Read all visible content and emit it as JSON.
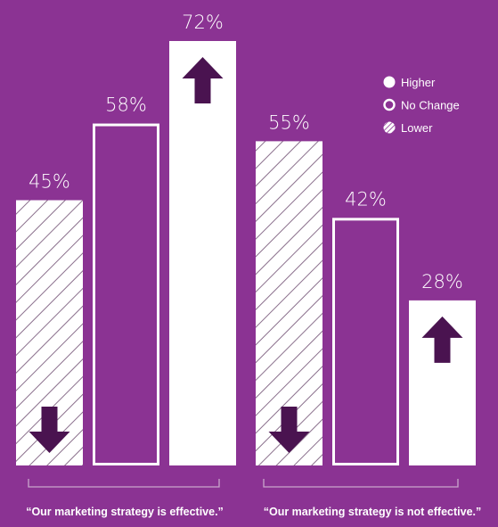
{
  "colors": {
    "background": "#8b3393",
    "white": "#ffffff",
    "arrow": "#4a1350",
    "hatch": "#8a6f8c"
  },
  "chart_data": {
    "type": "bar",
    "title": "",
    "xlabel": "",
    "ylabel": "",
    "ylim": [
      0,
      72
    ],
    "grid": false,
    "legend_position": "top-right",
    "legend": [
      {
        "key": "higher",
        "label": "Higher",
        "icon": "filled-circle-icon"
      },
      {
        "key": "no_change",
        "label": "No Change",
        "icon": "ring-circle-icon"
      },
      {
        "key": "lower",
        "label": "Lower",
        "icon": "hatched-circle-icon"
      }
    ],
    "groups": [
      {
        "label": "“Our marketing strategy is effective.”",
        "bars": [
          {
            "series": "lower",
            "value": 45,
            "display": "45%",
            "arrow": "down"
          },
          {
            "series": "no_change",
            "value": 58,
            "display": "58%",
            "arrow": "none"
          },
          {
            "series": "higher",
            "value": 72,
            "display": "72%",
            "arrow": "up"
          }
        ]
      },
      {
        "label": "“Our marketing strategy is not effective.”",
        "bars": [
          {
            "series": "lower",
            "value": 55,
            "display": "55%",
            "arrow": "down"
          },
          {
            "series": "no_change",
            "value": 42,
            "display": "42%",
            "arrow": "none"
          },
          {
            "series": "higher",
            "value": 28,
            "display": "28%",
            "arrow": "up"
          }
        ]
      }
    ]
  }
}
